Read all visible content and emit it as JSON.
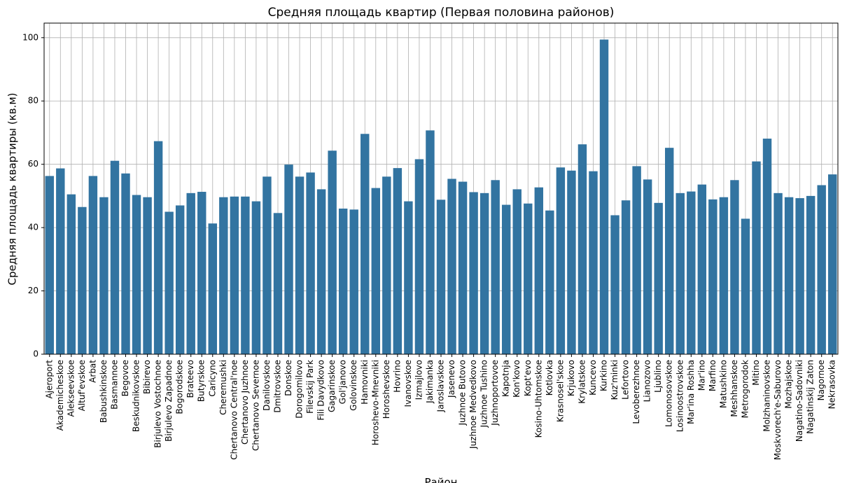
{
  "chart_data": {
    "type": "bar",
    "title": "Средняя площадь квартир (Первая половина районов)",
    "x_label": "Район",
    "y_label": "Средняя площадь квартиры (кв.м)",
    "color": "#3274a1",
    "grid": true,
    "ylim": [
      0,
      104.6
    ],
    "yticks": [
      0,
      20,
      40,
      60,
      80,
      100
    ],
    "categories": [
      "Ajeroport",
      "Akademicheskoe",
      "Alekseevskoe",
      "Altuf'evskoe",
      "Arbat",
      "Babushkinskoe",
      "Basmannoe",
      "Begovoe",
      "Beskudnikovskoe",
      "Bibirevo",
      "Birjulevo Vostochnoe",
      "Birjulevo Zapadnoe",
      "Bogorodskoe",
      "Brateevo",
      "Butyrskoe",
      "Caricyno",
      "Cheremushki",
      "Chertanovo Central'noe",
      "Chertanovo Juzhnoe",
      "Chertanovo Severnoe",
      "Danilovskoe",
      "Dmitrovskoe",
      "Donskoe",
      "Dorogomilovo",
      "Filevskij Park",
      "Fili Davydkovo",
      "Gagarinskoe",
      "Gol'janovo",
      "Golovinskoe",
      "Hamovniki",
      "Horoshevo-Mnevniki",
      "Horoshevskoe",
      "Hovrino",
      "Ivanovskoe",
      "Izmajlovo",
      "Jakimanka",
      "Jaroslavskoe",
      "Jasenevo",
      "Juzhnoe Butovo",
      "Juzhnoe Medvedkovo",
      "Juzhnoe Tushino",
      "Juzhnoportovoe",
      "Kapotnja",
      "Kon'kovo",
      "Kopt'evo",
      "Kosino-Uhtomskoe",
      "Kotlovka",
      "Krasnosel'skoe",
      "Krjukovo",
      "Krylatskoe",
      "Kuncevo",
      "Kurkino",
      "Kuz'minki",
      "Lefortovo",
      "Levoberezhnoe",
      "Lianozovo",
      "Ljublino",
      "Lomonosovskoe",
      "Losinoostrovskoe",
      "Mar'ina Roshha",
      "Mar'ino",
      "Marfino",
      "Matushkino",
      "Meshhanskoe",
      "Metrogorodok",
      "Mitino",
      "Molzhaninovskoe",
      "Moskvorech'e-Saburovo",
      "Mozhajskoe",
      "Nagatino-Sadovniki",
      "Nagatinskij Zaton",
      "Nagornoe",
      "Nekrasovka"
    ],
    "values": [
      56.3,
      58.7,
      50.5,
      46.5,
      56.3,
      49.6,
      61.1,
      57.1,
      50.3,
      49.6,
      67.3,
      45.0,
      47.0,
      50.9,
      51.3,
      41.3,
      49.6,
      49.8,
      49.8,
      48.3,
      56.1,
      44.6,
      59.9,
      56.1,
      57.4,
      52.1,
      64.3,
      46.0,
      45.7,
      69.6,
      52.5,
      56.1,
      58.8,
      48.3,
      61.6,
      70.7,
      48.8,
      55.4,
      54.5,
      51.2,
      50.9,
      55.0,
      47.2,
      52.1,
      47.6,
      52.7,
      45.4,
      59.0,
      58.0,
      66.3,
      57.8,
      99.4,
      43.9,
      48.6,
      59.4,
      55.2,
      47.8,
      65.2,
      50.9,
      51.4,
      53.6,
      48.9,
      49.6,
      55.0,
      42.8,
      60.9,
      68.1,
      50.9,
      49.6,
      49.3,
      50.0,
      53.4,
      56.8
    ]
  }
}
